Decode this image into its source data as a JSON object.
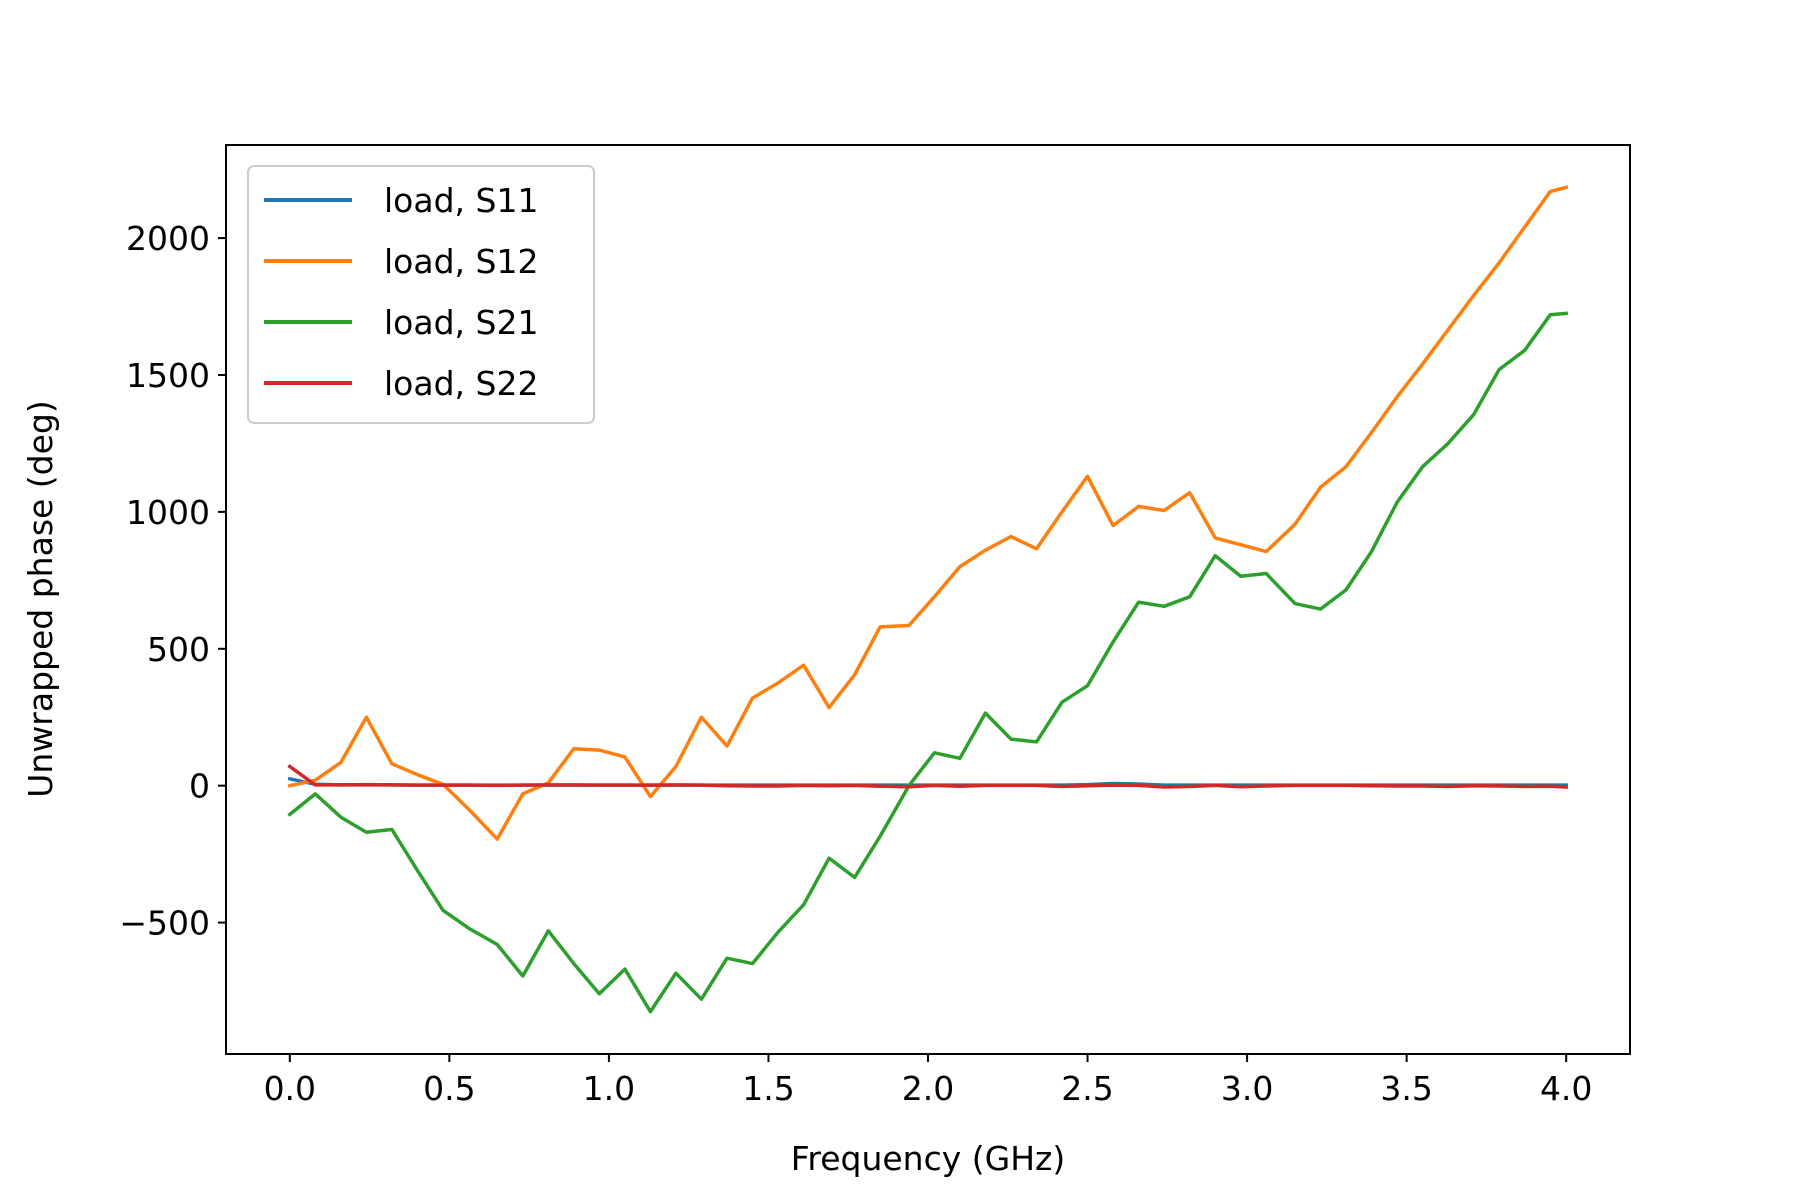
{
  "chart_data": {
    "type": "line",
    "title": "",
    "xlabel": "Frequency (GHz)",
    "ylabel": "Unwrapped phase (deg)",
    "xlim": [
      -0.2,
      4.2
    ],
    "ylim": [
      -980,
      2340
    ],
    "xticks": [
      0.0,
      0.5,
      1.0,
      1.5,
      2.0,
      2.5,
      3.0,
      3.5,
      4.0
    ],
    "xtick_labels": [
      "0.0",
      "0.5",
      "1.0",
      "1.5",
      "2.0",
      "2.5",
      "3.0",
      "3.5",
      "4.0"
    ],
    "yticks": [
      -500,
      0,
      500,
      1000,
      1500,
      2000
    ],
    "ytick_labels": [
      "−500",
      "0",
      "500",
      "1000",
      "1500",
      "2000"
    ],
    "grid": false,
    "legend_position": "upper-left",
    "x": [
      0.0,
      0.08,
      0.16,
      0.24,
      0.32,
      0.4,
      0.48,
      0.56,
      0.65,
      0.73,
      0.81,
      0.89,
      0.97,
      1.05,
      1.13,
      1.21,
      1.29,
      1.37,
      1.45,
      1.53,
      1.61,
      1.69,
      1.77,
      1.85,
      1.94,
      2.02,
      2.1,
      2.18,
      2.26,
      2.34,
      2.42,
      2.5,
      2.58,
      2.66,
      2.74,
      2.82,
      2.9,
      2.98,
      3.06,
      3.15,
      3.23,
      3.31,
      3.39,
      3.47,
      3.55,
      3.63,
      3.71,
      3.79,
      3.87,
      3.95,
      4.0
    ],
    "series": [
      {
        "name": "load, S11",
        "color": "#1f77b4",
        "values": [
          25,
          5,
          3,
          3,
          3,
          2,
          2,
          2,
          2,
          2,
          2,
          2,
          2,
          2,
          2,
          2,
          2,
          2,
          2,
          2,
          2,
          2,
          2,
          2,
          2,
          2,
          2,
          2,
          2,
          2,
          2,
          4,
          8,
          6,
          2,
          2,
          2,
          2,
          2,
          2,
          2,
          2,
          2,
          2,
          2,
          2,
          2,
          2,
          2,
          2,
          2
        ]
      },
      {
        "name": "load, S12",
        "color": "#ff7f0e",
        "values": [
          0,
          20,
          85,
          250,
          80,
          40,
          5,
          -85,
          -195,
          -30,
          10,
          135,
          130,
          105,
          -40,
          70,
          250,
          145,
          320,
          375,
          440,
          285,
          405,
          580,
          585,
          690,
          800,
          860,
          910,
          865,
          1000,
          1130,
          950,
          1020,
          1005,
          1070,
          905,
          880,
          855,
          955,
          1090,
          1165,
          1290,
          1420,
          1540,
          1665,
          1790,
          1910,
          2040,
          2170,
          2185
        ]
      },
      {
        "name": "load, S21",
        "color": "#2ca02c",
        "values": [
          -105,
          -30,
          -115,
          -170,
          -160,
          -310,
          -455,
          -520,
          -580,
          -695,
          -530,
          -650,
          -760,
          -670,
          -825,
          -685,
          -780,
          -630,
          -650,
          -535,
          -435,
          -265,
          -335,
          -185,
          0,
          120,
          100,
          265,
          170,
          160,
          305,
          365,
          525,
          670,
          655,
          690,
          840,
          765,
          775,
          665,
          645,
          715,
          855,
          1035,
          1165,
          1250,
          1355,
          1520,
          1590,
          1720,
          1725
        ]
      },
      {
        "name": "load, S22",
        "color": "#d62728",
        "values": [
          70,
          3,
          3,
          4,
          3,
          2,
          2,
          2,
          1,
          2,
          3,
          3,
          2,
          2,
          2,
          3,
          2,
          0,
          -1,
          -1,
          1,
          0,
          1,
          -2,
          -4,
          1,
          -2,
          1,
          1,
          1,
          -3,
          0,
          2,
          1,
          -5,
          -3,
          1,
          -4,
          -1,
          1,
          1,
          1,
          0,
          -1,
          -1,
          -3,
          0,
          -1,
          -3,
          -2,
          -5
        ]
      }
    ]
  }
}
